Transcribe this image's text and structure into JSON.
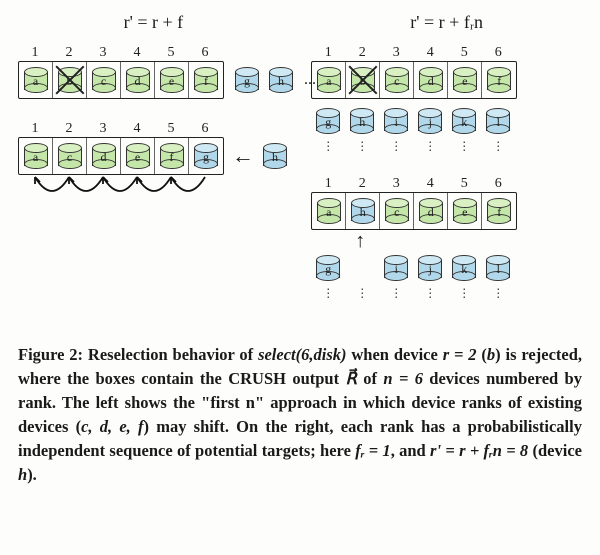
{
  "panels": {
    "left": {
      "title_html": "r' = r + f",
      "top": {
        "numbers": [
          "1",
          "2",
          "3",
          "4",
          "5",
          "6"
        ],
        "boxed": [
          {
            "label": "a",
            "color": "green",
            "crossed": false
          },
          {
            "label": "b",
            "color": "green",
            "crossed": true
          },
          {
            "label": "c",
            "color": "green",
            "crossed": false
          },
          {
            "label": "d",
            "color": "green",
            "crossed": false
          },
          {
            "label": "e",
            "color": "green",
            "crossed": false
          },
          {
            "label": "f",
            "color": "green",
            "crossed": false
          }
        ],
        "extras": [
          {
            "label": "g",
            "color": "blue"
          },
          {
            "label": "h",
            "color": "blue"
          }
        ],
        "trailing_ellipsis": "..."
      },
      "bottom": {
        "numbers": [
          "1",
          "2",
          "3",
          "4",
          "5",
          "6"
        ],
        "boxed": [
          {
            "label": "a",
            "color": "green",
            "crossed": false
          },
          {
            "label": "c",
            "color": "green",
            "crossed": false
          },
          {
            "label": "d",
            "color": "green",
            "crossed": false
          },
          {
            "label": "e",
            "color": "green",
            "crossed": false
          },
          {
            "label": "f",
            "color": "green",
            "crossed": false
          },
          {
            "label": "g",
            "color": "blue",
            "crossed": false
          }
        ],
        "arrow_glyph": "←",
        "extras": [
          {
            "label": "h",
            "color": "blue"
          }
        ],
        "shift_arrows": [
          [
            2,
            1
          ],
          [
            3,
            2
          ],
          [
            4,
            3
          ],
          [
            5,
            4
          ],
          [
            6,
            5
          ]
        ]
      }
    },
    "right": {
      "title_html": "r' = r + fᵣn",
      "top": {
        "numbers": [
          "1",
          "2",
          "3",
          "4",
          "5",
          "6"
        ],
        "boxed": [
          {
            "label": "a",
            "color": "green",
            "crossed": false
          },
          {
            "label": "b",
            "color": "green",
            "crossed": true
          },
          {
            "label": "c",
            "color": "green",
            "crossed": false
          },
          {
            "label": "d",
            "color": "green",
            "crossed": false
          },
          {
            "label": "e",
            "color": "green",
            "crossed": false
          },
          {
            "label": "f",
            "color": "green",
            "crossed": false
          }
        ],
        "below": [
          {
            "label": "g",
            "color": "blue"
          },
          {
            "label": "h",
            "color": "blue"
          },
          {
            "label": "i",
            "color": "blue"
          },
          {
            "label": "j",
            "color": "blue"
          },
          {
            "label": "k",
            "color": "blue"
          },
          {
            "label": "l",
            "color": "blue"
          }
        ],
        "vdots": "⋮"
      },
      "bottom": {
        "numbers": [
          "1",
          "2",
          "3",
          "4",
          "5",
          "6"
        ],
        "boxed": [
          {
            "label": "a",
            "color": "green",
            "crossed": false
          },
          {
            "label": "h",
            "color": "blue",
            "crossed": false
          },
          {
            "label": "c",
            "color": "green",
            "crossed": false
          },
          {
            "label": "d",
            "color": "green",
            "crossed": false
          },
          {
            "label": "e",
            "color": "green",
            "crossed": false
          },
          {
            "label": "f",
            "color": "green",
            "crossed": false
          }
        ],
        "up_arrow": "↑",
        "up_arrow_col": 1,
        "below": [
          {
            "label": "g",
            "color": "blue"
          },
          {
            "label": "",
            "color": "none"
          },
          {
            "label": "i",
            "color": "blue"
          },
          {
            "label": "j",
            "color": "blue"
          },
          {
            "label": "k",
            "color": "blue"
          },
          {
            "label": "l",
            "color": "blue"
          }
        ],
        "vdots": "⋮"
      }
    }
  },
  "colors": {
    "green_fill": "#c4e6a8",
    "green_top": "#d8f0c2",
    "blue_fill": "#b0d8ea",
    "blue_top": "#cfe9f4",
    "stroke": "#333333",
    "bg": "#fdfdfb"
  },
  "caption": {
    "fig_label": "Figure 2:",
    "text_parts": {
      "p1": " Reselection behavior of ",
      "select": "select(6,disk)",
      "p2": " when device ",
      "r_eq": "r = 2",
      "p3": " (",
      "b": "b",
      "p4": ") is rejected, where the boxes contain the CRUSH output ",
      "R": "R⃗",
      "p5": " of ",
      "n_eq": "n = 6",
      "p6": " devices numbered by rank. The left shows the \"first n\" approach in which device ranks of existing devices (",
      "cdef": "c, d, e, f",
      "p7": ") may shift.  On the right, each rank has a probabilistically independent sequence of potential targets; here ",
      "fr": "fᵣ = 1",
      "p8": ", and ",
      "rprime": "r' = r + fᵣn = 8",
      "p9": " (device ",
      "h": "h",
      "p10": ")."
    }
  }
}
